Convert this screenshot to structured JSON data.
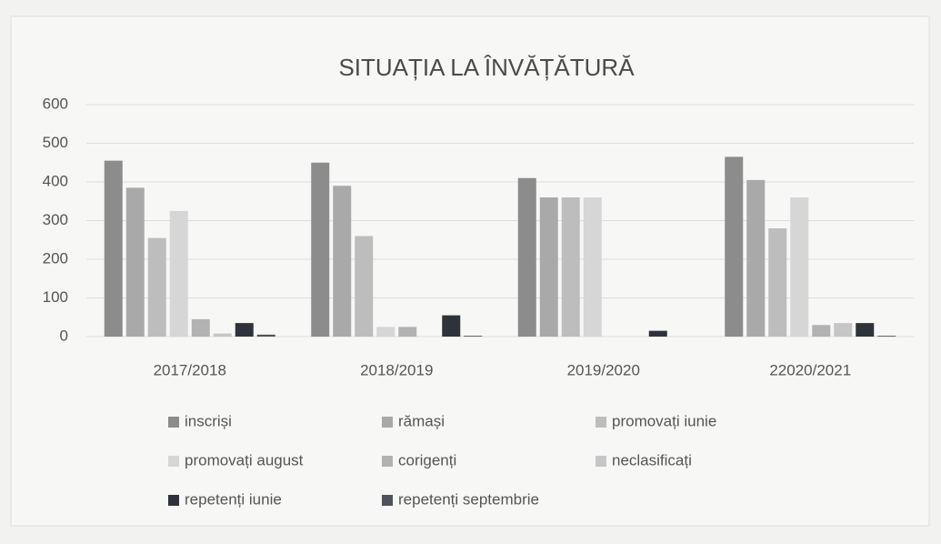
{
  "chart_data": {
    "type": "bar",
    "title": "SITUAȚIA LA ÎNVĂȚĂTURĂ",
    "categories": [
      "2017/2018",
      "2018/2019",
      "2019/2020",
      "22020/2021"
    ],
    "series": [
      {
        "name": "inscriși",
        "color": "#8c8c8c",
        "values": [
          455,
          450,
          410,
          465
        ]
      },
      {
        "name": "rămași",
        "color": "#a9a9a9",
        "values": [
          385,
          390,
          360,
          405
        ]
      },
      {
        "name": "promovați iunie",
        "color": "#bdbdbd",
        "values": [
          255,
          260,
          360,
          280
        ]
      },
      {
        "name": "promovați august",
        "color": "#d6d6d6",
        "values": [
          325,
          25,
          360,
          360
        ]
      },
      {
        "name": "corigenți",
        "color": "#b2b2b2",
        "values": [
          45,
          25,
          0,
          30
        ]
      },
      {
        "name": "neclasificați",
        "color": "#c6c6c6",
        "values": [
          8,
          0,
          0,
          35
        ]
      },
      {
        "name": "repetenți iunie",
        "color": "#2e333b",
        "values": [
          35,
          55,
          15,
          35
        ]
      },
      {
        "name": "repetenți septembrie",
        "color": "#4d525c",
        "values": [
          5,
          2,
          0,
          2
        ]
      }
    ],
    "ylim": [
      0,
      600
    ],
    "yticks": [
      0,
      100,
      200,
      300,
      400,
      500,
      600
    ],
    "grid": true,
    "legend": "bottom"
  }
}
